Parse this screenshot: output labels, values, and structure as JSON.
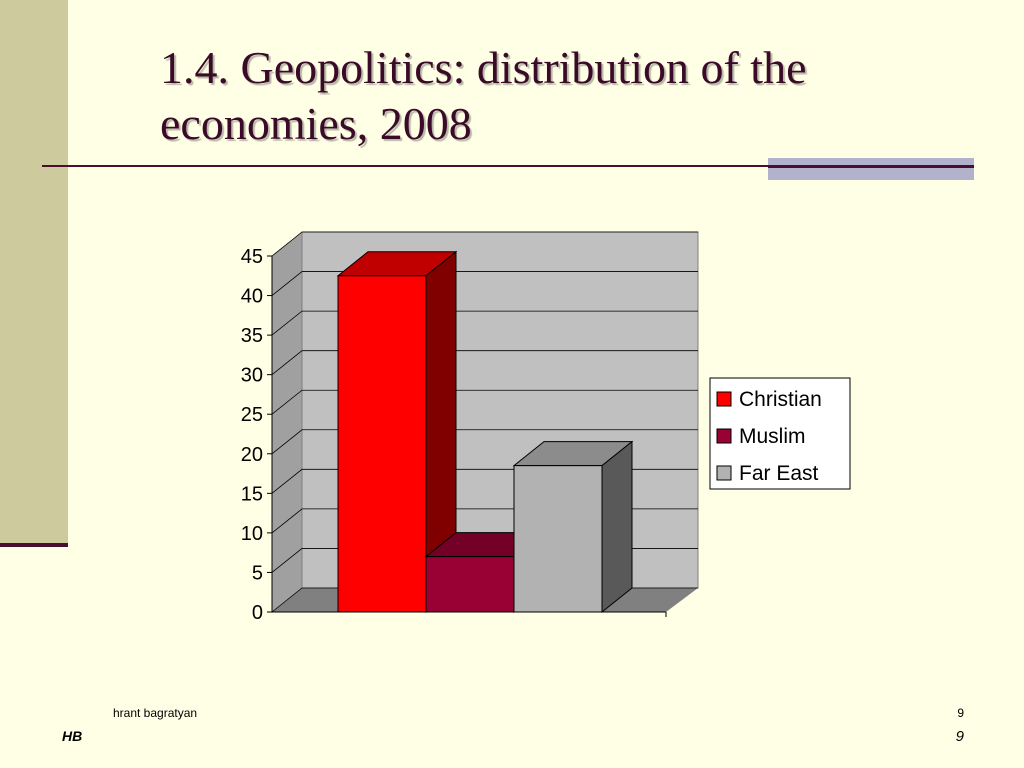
{
  "slide": {
    "title": "1.4. Geopolitics: distribution of the economies, 2008",
    "footer_author": "hrant bagratyan",
    "footer_page_small": "9",
    "footer_logo": "HB",
    "footer_page": "9"
  },
  "colors": {
    "background": "#FFFFE5",
    "sidebar": "#CDCB9E",
    "title_text": "#3A0A28",
    "rule": "#4A0E2E",
    "accent_bar": "#B3B2CC"
  },
  "chart_data": {
    "type": "bar",
    "style": "3d-clustered",
    "categories": [
      ""
    ],
    "series": [
      {
        "name": "Christian",
        "values": [
          42.5
        ],
        "color": "#FF0000",
        "side_color": "#800000",
        "top_color": "#C00000"
      },
      {
        "name": "Muslim",
        "values": [
          7
        ],
        "color": "#990033",
        "side_color": "#4C0019",
        "top_color": "#730026"
      },
      {
        "name": "Far East",
        "values": [
          18.5
        ],
        "color": "#B2B2B2",
        "side_color": "#595959",
        "top_color": "#8C8C8C"
      }
    ],
    "ylim": [
      0,
      45
    ],
    "yticks": [
      "0",
      "5",
      "10",
      "15",
      "20",
      "25",
      "30",
      "35",
      "40",
      "45"
    ],
    "title": "",
    "xlabel": "",
    "ylabel": "",
    "grid": true,
    "legend_position": "right",
    "colors": {
      "wall": "#C0C0C0",
      "wall_side": "#A0A0A0",
      "floor": "#808080",
      "gridline": "#000000"
    }
  }
}
